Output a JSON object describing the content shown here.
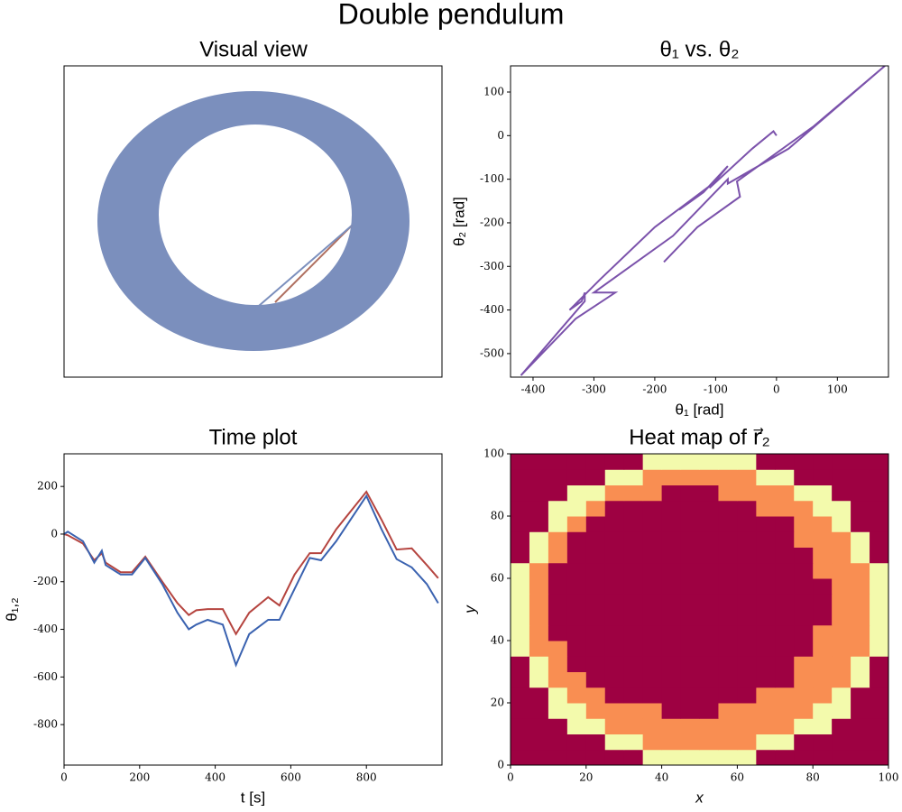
{
  "title": "Double pendulum",
  "chart_data": [
    {
      "type": "image",
      "title": "Visual view"
    },
    {
      "type": "line",
      "title": "θ₁ vs. θ₂",
      "xlabel": "θ₁ [rad]",
      "ylabel": "θ₂ [rad]",
      "color": "#7b52ab",
      "x": [
        0,
        -5,
        -40,
        -110,
        -80,
        -120,
        -160,
        -160,
        -95,
        -200,
        -290,
        -340,
        -320,
        -315,
        -315,
        -420,
        -330,
        -265,
        -300,
        -170,
        -80,
        -80,
        20,
        178,
        60,
        -65,
        -60,
        -130,
        -185
      ],
      "values": [
        0,
        10,
        -30,
        -120,
        -70,
        -130,
        -170,
        -170,
        -100,
        -210,
        -330,
        -400,
        -380,
        -360,
        -380,
        -550,
        -420,
        -360,
        -360,
        -230,
        -100,
        -110,
        -30,
        160,
        20,
        -105,
        -140,
        -210,
        -290
      ],
      "xlim": [
        -437,
        184
      ],
      "xticks": [
        -400,
        -300,
        -200,
        -100,
        0,
        100
      ],
      "ylim": [
        -554,
        160
      ],
      "yticks": [
        -500,
        -400,
        -300,
        -200,
        -100,
        0,
        100
      ]
    },
    {
      "type": "line",
      "title": "Time plot",
      "xlabel": "t [s]",
      "ylabel": "θ₁,₂",
      "x": [
        0,
        10,
        50,
        80,
        100,
        110,
        150,
        180,
        215,
        260,
        300,
        330,
        350,
        380,
        420,
        455,
        490,
        540,
        570,
        610,
        650,
        680,
        720,
        800,
        840,
        880,
        920,
        960,
        990
      ],
      "series": [
        {
          "color": "#b5443f",
          "values": [
            0,
            -5,
            -40,
            -110,
            -80,
            -120,
            -160,
            -160,
            -95,
            -200,
            -290,
            -340,
            -320,
            -315,
            -315,
            -420,
            -330,
            -265,
            -300,
            -170,
            -80,
            -80,
            20,
            178,
            60,
            -65,
            -60,
            -130,
            -185
          ]
        },
        {
          "color": "#3a62b0",
          "values": [
            0,
            10,
            -30,
            -120,
            -70,
            -130,
            -170,
            -170,
            -100,
            -210,
            -330,
            -400,
            -380,
            -360,
            -380,
            -550,
            -420,
            -360,
            -360,
            -230,
            -100,
            -110,
            -30,
            160,
            20,
            -105,
            -140,
            -210,
            -290
          ]
        }
      ],
      "xlim": [
        0,
        1000
      ],
      "xticks": [
        0,
        200,
        400,
        600,
        800
      ],
      "ylim": [
        -970,
        337
      ],
      "yticks": [
        -800,
        -600,
        -400,
        -200,
        0,
        200
      ]
    },
    {
      "type": "heatmap",
      "title": "Heat map of r⃗₂",
      "xlabel": "x",
      "ylabel": "y",
      "xlim": [
        0,
        100
      ],
      "xticks": [
        0,
        20,
        40,
        60,
        80,
        100
      ],
      "ylim": [
        0,
        100
      ],
      "yticks": [
        0,
        20,
        40,
        60,
        80,
        100
      ],
      "zlim": [
        0,
        1
      ],
      "colormap": [
        "#9e0142",
        "#d53e4f",
        "#f46d43",
        "#fdae61",
        "#fee08b",
        "#ffffbf",
        "#e6f598",
        "#abdda4",
        "#66c2a5",
        "#3288bd",
        "#5e4fa2"
      ],
      "z": [
        [
          0,
          0,
          0,
          0,
          0,
          0,
          0,
          0.55,
          0.55,
          0.55,
          0.55,
          0.55,
          0.55,
          0,
          0,
          0,
          0,
          0,
          0,
          0
        ],
        [
          0,
          0,
          0,
          0,
          0,
          0.55,
          0.55,
          0.25,
          0.25,
          0.25,
          0.25,
          0.25,
          0.25,
          0.55,
          0.55,
          0,
          0,
          0,
          0,
          0
        ],
        [
          0,
          0,
          0,
          0.55,
          0.55,
          0.25,
          0.25,
          0.25,
          0.25,
          0.25,
          0.25,
          0.25,
          0.25,
          0.25,
          0.25,
          0.55,
          0.55,
          0,
          0,
          0
        ],
        [
          0,
          0,
          0.55,
          0.55,
          0.25,
          0.25,
          0.25,
          0.25,
          0,
          0,
          0,
          0.25,
          0.25,
          0.25,
          0.25,
          0.25,
          0.55,
          0.55,
          0,
          0
        ],
        [
          0,
          0,
          0.55,
          0.25,
          0.25,
          0,
          0,
          0,
          0,
          0,
          0,
          0,
          0,
          0.25,
          0.25,
          0.25,
          0.25,
          0.55,
          0,
          0
        ],
        [
          0,
          0.55,
          0.25,
          0.25,
          0,
          0,
          0,
          0,
          0,
          0,
          0,
          0,
          0,
          0,
          0,
          0.25,
          0.25,
          0.25,
          0.55,
          0
        ],
        [
          0,
          0.55,
          0.25,
          0,
          0,
          0,
          0,
          0,
          0,
          0,
          0,
          0,
          0,
          0,
          0,
          0.25,
          0.25,
          0.25,
          0.55,
          0
        ],
        [
          0.55,
          0.25,
          0.25,
          0,
          0,
          0,
          0,
          0,
          0,
          0,
          0,
          0,
          0,
          0,
          0,
          0,
          0.25,
          0.25,
          0.25,
          0.55
        ],
        [
          0.55,
          0.25,
          0,
          0,
          0,
          0,
          0,
          0,
          0,
          0,
          0,
          0,
          0,
          0,
          0,
          0,
          0.25,
          0.25,
          0.25,
          0.55
        ],
        [
          0.55,
          0.25,
          0,
          0,
          0,
          0,
          0,
          0,
          0,
          0,
          0,
          0,
          0,
          0,
          0,
          0,
          0,
          0.25,
          0.25,
          0.55
        ],
        [
          0.55,
          0.25,
          0,
          0,
          0,
          0,
          0,
          0,
          0,
          0,
          0,
          0,
          0,
          0,
          0,
          0,
          0,
          0.25,
          0.25,
          0.55
        ],
        [
          0.55,
          0.25,
          0,
          0,
          0,
          0,
          0,
          0,
          0,
          0,
          0,
          0,
          0,
          0,
          0,
          0,
          0,
          0.25,
          0.25,
          0.55
        ],
        [
          0.55,
          0.25,
          0,
          0,
          0,
          0,
          0,
          0,
          0,
          0,
          0,
          0,
          0,
          0,
          0,
          0,
          0.25,
          0.25,
          0.25,
          0.55
        ],
        [
          0,
          0.55,
          0.25,
          0,
          0,
          0,
          0,
          0,
          0,
          0,
          0,
          0,
          0,
          0,
          0,
          0,
          0.25,
          0.25,
          0.55,
          0
        ],
        [
          0,
          0.55,
          0.25,
          0,
          0,
          0,
          0,
          0,
          0,
          0,
          0,
          0,
          0,
          0,
          0,
          0.25,
          0.25,
          0.25,
          0.55,
          0
        ],
        [
          0,
          0,
          0.55,
          0.25,
          0,
          0,
          0,
          0,
          0,
          0,
          0,
          0,
          0,
          0,
          0,
          0.25,
          0.25,
          0.55,
          0,
          0
        ],
        [
          0,
          0,
          0.55,
          0.55,
          0.25,
          0,
          0,
          0,
          0,
          0,
          0,
          0,
          0,
          0.25,
          0.25,
          0.25,
          0.55,
          0.55,
          0,
          0
        ],
        [
          0,
          0,
          0,
          0.55,
          0.55,
          0.25,
          0.25,
          0.25,
          0,
          0,
          0,
          0.25,
          0.25,
          0.25,
          0.25,
          0.55,
          0.55,
          0,
          0,
          0
        ],
        [
          0,
          0,
          0,
          0,
          0,
          0.55,
          0.55,
          0.25,
          0.25,
          0.25,
          0.25,
          0.25,
          0.25,
          0.55,
          0.55,
          0,
          0,
          0,
          0,
          0
        ],
        [
          0,
          0,
          0,
          0,
          0,
          0,
          0,
          0.55,
          0.55,
          0.55,
          0.55,
          0.55,
          0.55,
          0,
          0,
          0,
          0,
          0,
          0,
          0
        ]
      ]
    }
  ]
}
